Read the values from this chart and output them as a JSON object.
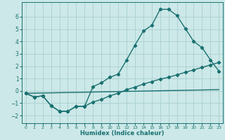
{
  "xlabel": "Humidex (Indice chaleur)",
  "background_color": "#cce8e8",
  "grid_color": "#aacfcf",
  "line_color": "#1a7070",
  "xlim": [
    -0.5,
    23.5
  ],
  "ylim": [
    -2.6,
    7.2
  ],
  "x_ticks": [
    0,
    1,
    2,
    3,
    4,
    5,
    6,
    7,
    8,
    9,
    10,
    11,
    12,
    13,
    14,
    15,
    16,
    17,
    18,
    19,
    20,
    21,
    22,
    23
  ],
  "y_ticks": [
    -2,
    -1,
    0,
    1,
    2,
    3,
    4,
    5,
    6
  ],
  "line1_x": [
    0,
    1,
    2,
    3,
    4,
    5,
    6,
    7,
    8,
    9,
    10,
    11,
    12,
    13,
    14,
    15,
    16,
    17,
    18,
    19,
    20,
    21,
    22,
    23
  ],
  "line1_y": [
    -0.2,
    -0.5,
    -0.4,
    -1.2,
    -1.65,
    -1.65,
    -1.25,
    -1.25,
    0.35,
    0.65,
    1.1,
    1.35,
    2.5,
    3.7,
    4.85,
    5.3,
    6.6,
    6.6,
    6.1,
    5.05,
    4.0,
    3.5,
    2.5,
    1.6
  ],
  "line2_x": [
    0,
    1,
    2,
    3,
    4,
    5,
    6,
    7,
    8,
    9,
    10,
    11,
    12,
    13,
    14,
    15,
    16,
    17,
    18,
    19,
    20,
    21,
    22,
    23
  ],
  "line2_y": [
    -0.2,
    -0.5,
    -0.4,
    -1.2,
    -1.65,
    -1.65,
    -1.25,
    -1.25,
    -0.9,
    -0.7,
    -0.4,
    -0.2,
    0.1,
    0.3,
    0.55,
    0.75,
    0.95,
    1.1,
    1.3,
    1.5,
    1.7,
    1.9,
    2.1,
    2.3
  ],
  "line3_x": [
    0,
    23
  ],
  "line3_y": [
    -0.2,
    0.1
  ],
  "marker_style": "D",
  "marker_size": 2.2,
  "line_width": 1.0
}
